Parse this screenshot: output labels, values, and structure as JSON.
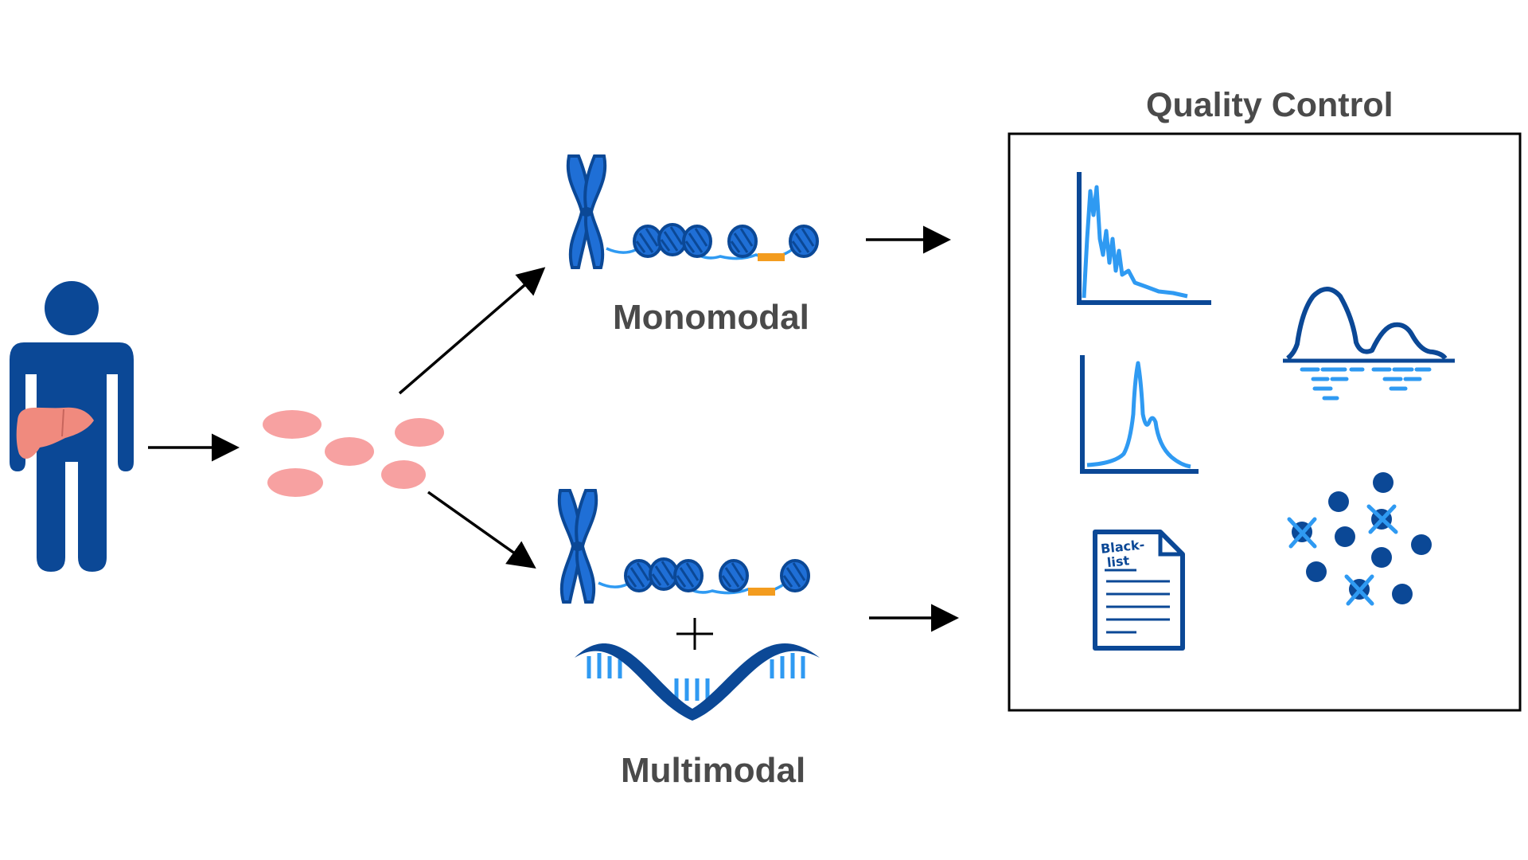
{
  "labels": {
    "monomodal": "Monomodal",
    "multimodal": "Multimodal",
    "quality_control": "Quality Control",
    "blacklist_line1": "Black-",
    "blacklist_line2": "list"
  },
  "colors": {
    "navy": "#0b4896",
    "blue": "#1f6fd6",
    "light_blue": "#2f9af2",
    "orange": "#f39c1f",
    "cell_pink": "#f7a1a1",
    "liver": "#f08a7e",
    "arrow": "#000000",
    "label": "#4a4a4a"
  },
  "icons": {
    "person": "person-icon",
    "liver": "liver-icon",
    "cells": "cells-icon",
    "chromatin": "chromosome-nucleosome-icon",
    "rna": "rna-strand-icon",
    "histogram": "fragment-histogram-icon",
    "peak": "tss-peak-icon",
    "density": "density-peaks-icon",
    "document": "blacklist-document-icon",
    "scatter": "doublet-scatter-icon"
  }
}
